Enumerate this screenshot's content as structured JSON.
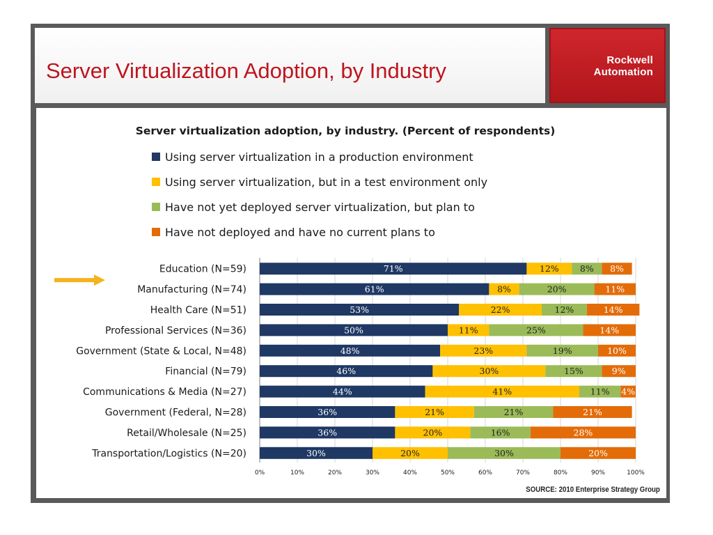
{
  "slide": {
    "title": "Server Virtualization Adoption, by Industry",
    "logo_line1": "Rockwell",
    "logo_line2": "Automation",
    "source": "SOURCE:  2010 Enterprise Strategy Group"
  },
  "colors": {
    "title": "#c0141e",
    "production": "#1f3864",
    "test": "#ffc000",
    "plan": "#9bbb59",
    "no_plan": "#e36c09",
    "arrow": "#f5b320"
  },
  "chart_data": {
    "type": "bar",
    "orientation": "horizontal",
    "stacked": true,
    "title": "Server virtualization adoption, by industry. (Percent of respondents)",
    "categories": [
      "Education (N=59)",
      "Manufacturing (N=74)",
      "Health Care (N=51)",
      "Professional Services (N=36)",
      "Government (State & Local, N=48)",
      "Financial (N=79)",
      "Communications & Media (N=27)",
      "Government (Federal, N=28)",
      "Retail/Wholesale (N=25)",
      "Transportation/Logistics (N=20)"
    ],
    "series": [
      {
        "name": "Using server virtualization in a production environment",
        "color": "#1f3864",
        "label_color": "#ffffff",
        "values": [
          71,
          61,
          53,
          50,
          48,
          46,
          44,
          36,
          36,
          30
        ]
      },
      {
        "name": "Using server virtualization, but in a test environment only",
        "color": "#ffc000",
        "label_color": "#222222",
        "values": [
          12,
          8,
          22,
          11,
          23,
          30,
          41,
          21,
          20,
          20
        ]
      },
      {
        "name": "Have not yet deployed server virtualization, but plan to",
        "color": "#9bbb59",
        "label_color": "#222222",
        "values": [
          8,
          20,
          12,
          25,
          19,
          15,
          11,
          21,
          16,
          30
        ]
      },
      {
        "name": "Have not deployed and have no current plans to",
        "color": "#e36c09",
        "label_color": "#ffffff",
        "values": [
          8,
          11,
          14,
          14,
          10,
          9,
          4,
          21,
          28,
          20
        ]
      }
    ],
    "x_ticks": [
      "0%",
      "10%",
      "20%",
      "30%",
      "40%",
      "50%",
      "60%",
      "70%",
      "80%",
      "90%",
      "100%"
    ],
    "xlim": [
      0,
      100
    ],
    "grid": "vertical",
    "legend_placement": "top",
    "highlight_category_index": 1
  }
}
